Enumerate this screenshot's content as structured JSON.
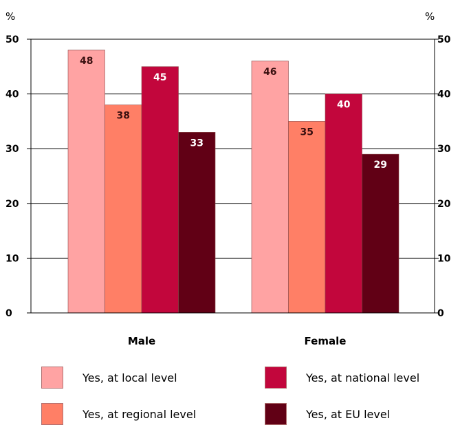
{
  "chart_data": {
    "type": "bar",
    "categories": [
      "Male",
      "Female"
    ],
    "series": [
      {
        "name": "Yes, at local level",
        "values": [
          48,
          46
        ],
        "color": "#ffa3a3",
        "label_color": "#3a1010"
      },
      {
        "name": "Yes, at regional level",
        "values": [
          38,
          35
        ],
        "color": "#ff7f66",
        "label_color": "#3a1010"
      },
      {
        "name": "Yes, at national level",
        "values": [
          45,
          40
        ],
        "color": "#c2063c",
        "label_color": "#ffffff"
      },
      {
        "name": "Yes, at EU level",
        "values": [
          33,
          29
        ],
        "color": "#610015",
        "label_color": "#ffffff"
      }
    ],
    "ylim": [
      0,
      50
    ],
    "yticks": [
      "0",
      "10",
      "20",
      "30",
      "40",
      "50"
    ],
    "unit_left": "%",
    "unit_right": "%",
    "grid": true,
    "legend_position": "bottom"
  }
}
